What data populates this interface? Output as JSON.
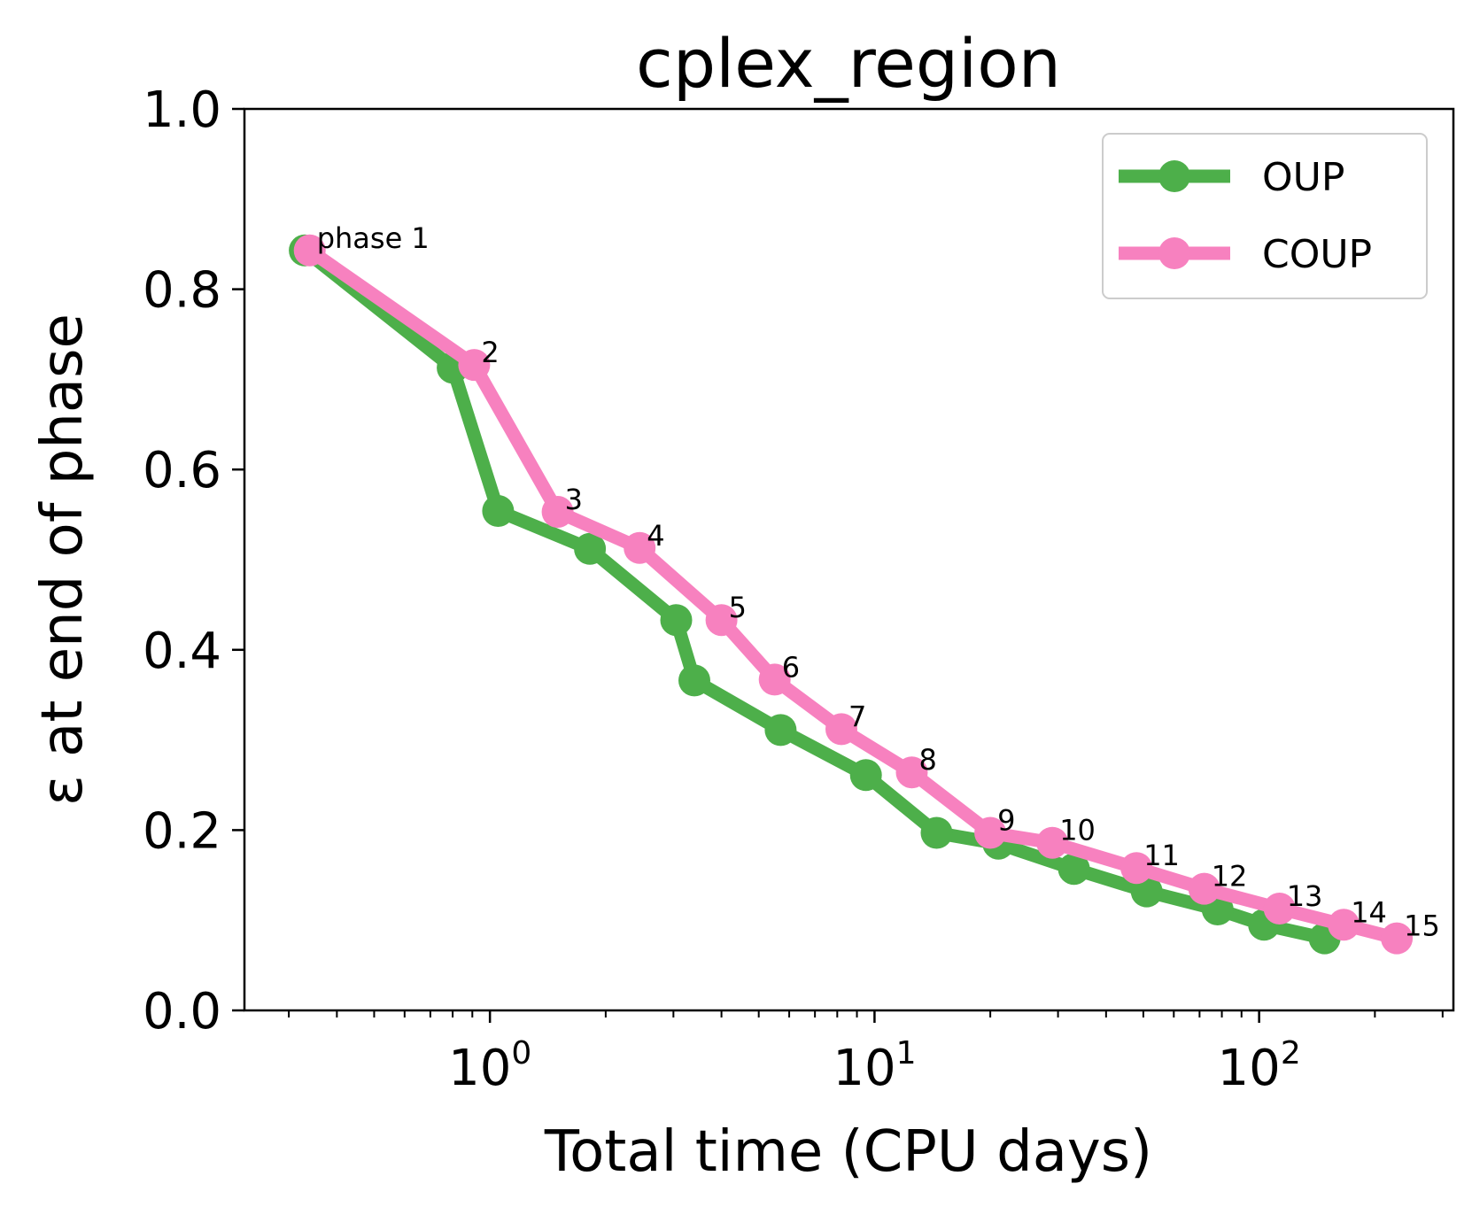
{
  "chart_data": {
    "type": "line",
    "title": "cplex_region",
    "xlabel": "Total time (CPU days)",
    "ylabel": "ε at end of phase",
    "xscale": "log",
    "xlim": [
      0.23,
      320
    ],
    "ylim": [
      0.0,
      1.0
    ],
    "x_ticks": [
      {
        "value": 1,
        "base": "10",
        "exp": "0"
      },
      {
        "value": 10,
        "base": "10",
        "exp": "1"
      },
      {
        "value": 100,
        "base": "10",
        "exp": "2"
      }
    ],
    "y_ticks": [
      {
        "value": 0.0,
        "label": "0.0"
      },
      {
        "value": 0.2,
        "label": "0.2"
      },
      {
        "value": 0.4,
        "label": "0.4"
      },
      {
        "value": 0.6,
        "label": "0.6"
      },
      {
        "value": 0.8,
        "label": "0.8"
      },
      {
        "value": 1.0,
        "label": "1.0"
      }
    ],
    "grid": false,
    "legend_position": "top-right",
    "series": [
      {
        "name": "OUP",
        "color": "#4daf4a",
        "x": [
          0.33,
          0.8,
          1.05,
          1.82,
          3.05,
          3.4,
          5.7,
          9.5,
          14.5,
          21,
          33,
          51,
          78,
          103,
          148
        ],
        "y": [
          0.843,
          0.713,
          0.554,
          0.512,
          0.433,
          0.366,
          0.311,
          0.261,
          0.197,
          0.185,
          0.157,
          0.132,
          0.112,
          0.095,
          0.08
        ]
      },
      {
        "name": "COUP",
        "color": "#f781bf",
        "x": [
          0.34,
          0.91,
          1.5,
          2.45,
          4.0,
          5.5,
          8.2,
          12.5,
          20,
          29,
          48,
          72,
          113,
          166,
          228
        ],
        "y": [
          0.843,
          0.716,
          0.553,
          0.513,
          0.433,
          0.367,
          0.312,
          0.264,
          0.197,
          0.186,
          0.158,
          0.135,
          0.113,
          0.095,
          0.08
        ]
      }
    ],
    "annotations": {
      "series": "COUP",
      "labels": [
        "phase 1",
        "2",
        "3",
        "4",
        "5",
        "6",
        "7",
        "8",
        "9",
        "10",
        "11",
        "12",
        "13",
        "14",
        "15"
      ]
    }
  }
}
